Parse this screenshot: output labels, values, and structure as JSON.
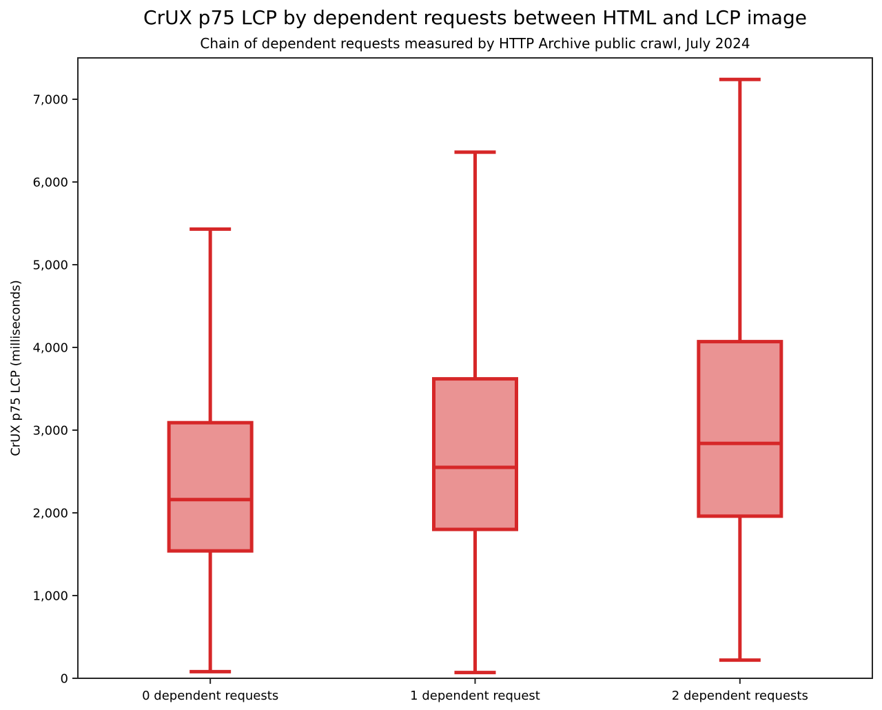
{
  "colors": {
    "box_line": "#d62728",
    "box_fill": "#ea9393",
    "axis": "#262626",
    "text": "#000000",
    "background": "#ffffff"
  },
  "chart_data": {
    "type": "boxplot",
    "title": "CrUX p75 LCP by dependent requests between HTML and LCP image",
    "subtitle": "Chain of dependent requests measured by HTTP Archive public crawl, July 2024",
    "ylabel": "CrUX p75 LCP (milliseconds)",
    "xlabel": "",
    "categories": [
      "0 dependent requests",
      "1 dependent request",
      "2 dependent requests"
    ],
    "series": [
      {
        "name": "0 dependent requests",
        "whisker_low": 80,
        "q1": 1540,
        "median": 2160,
        "q3": 3090,
        "whisker_high": 5430
      },
      {
        "name": "1 dependent request",
        "whisker_low": 70,
        "q1": 1800,
        "median": 2550,
        "q3": 3620,
        "whisker_high": 6360
      },
      {
        "name": "2 dependent requests",
        "whisker_low": 220,
        "q1": 1960,
        "median": 2840,
        "q3": 4070,
        "whisker_high": 7240
      }
    ],
    "ylim": [
      0,
      7500
    ],
    "yticks": [
      0,
      1000,
      2000,
      3000,
      4000,
      5000,
      6000,
      7000
    ],
    "ytick_labels": [
      "0",
      "1,000",
      "2,000",
      "3,000",
      "4,000",
      "5,000",
      "6,000",
      "7,000"
    ],
    "grid": false,
    "legend": "none"
  }
}
